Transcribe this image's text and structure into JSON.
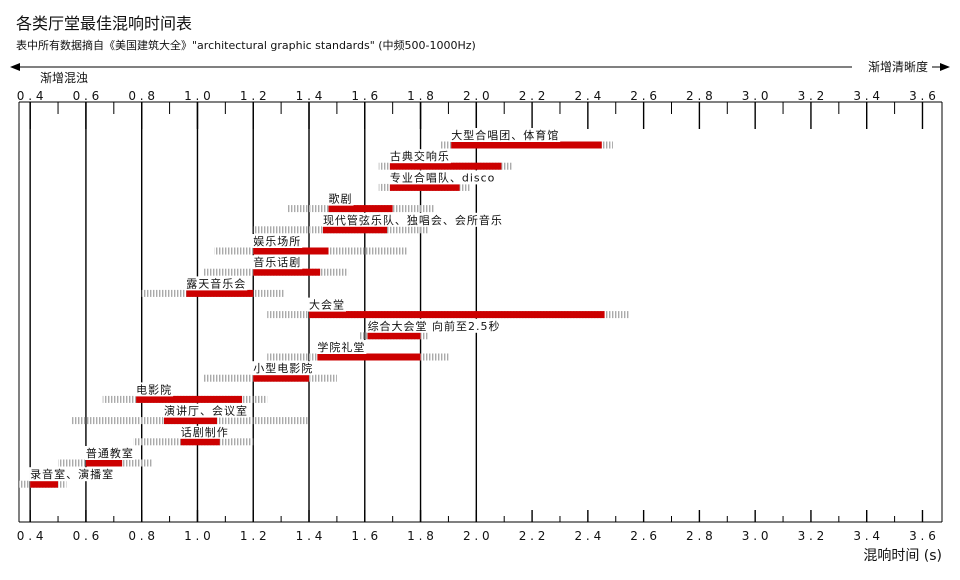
{
  "chart_data": {
    "type": "range-bar",
    "title": "各类厅堂最佳混响时间表",
    "subtitle": "表中所有数据摘自《美国建筑大全》\"architectural graphic standards\" (中频500-1000Hz)",
    "direction_left": "渐增混浊",
    "direction_right": "渐增清晰度",
    "xlabel": "混响时间 (s)",
    "xlim": [
      0.36,
      3.67
    ],
    "ticks": [
      {
        "v": 0.4,
        "label": "0.4"
      },
      {
        "v": 0.6,
        "label": "0.6"
      },
      {
        "v": 0.8,
        "label": "0.8"
      },
      {
        "v": 1.0,
        "label": "1.0"
      },
      {
        "v": 1.2,
        "label": "1.2"
      },
      {
        "v": 1.4,
        "label": "1.4"
      },
      {
        "v": 1.6,
        "label": "1.6"
      },
      {
        "v": 1.8,
        "label": "1.8"
      },
      {
        "v": 2.0,
        "label": "2.0"
      },
      {
        "v": 2.2,
        "label": "2.2"
      },
      {
        "v": 2.4,
        "label": "2.4"
      },
      {
        "v": 2.6,
        "label": "2.6"
      },
      {
        "v": 2.8,
        "label": "2.8"
      },
      {
        "v": 3.0,
        "label": "3.0"
      },
      {
        "v": 3.2,
        "label": "3.2"
      },
      {
        "v": 3.4,
        "label": "3.4"
      },
      {
        "v": 3.6,
        "label": "3.6"
      }
    ],
    "major_lines": [
      0.4,
      0.6,
      0.8,
      1.0,
      1.2,
      1.4,
      1.6,
      1.8,
      2.0,
      2.2,
      2.4,
      2.6,
      2.8,
      3.0,
      3.2,
      3.4,
      3.6
    ],
    "colors": {
      "optimal": "#cc0000",
      "tolerance": "#aaaaaa",
      "grid": "#000000"
    },
    "legend": "none",
    "rows": [
      {
        "name": "大型合唱团、体育馆",
        "tol_low": 1.87,
        "low": 1.91,
        "high": 2.45,
        "tol_high": 2.49
      },
      {
        "name": "古典交响乐",
        "tol_low": 1.65,
        "low": 1.69,
        "high": 2.09,
        "tol_high": 2.13
      },
      {
        "name": "专业合唱队、disco",
        "tol_low": 1.65,
        "low": 1.69,
        "high": 1.94,
        "tol_high": 1.98
      },
      {
        "name": "歌剧",
        "tol_low": 1.32,
        "low": 1.47,
        "high": 1.7,
        "tol_high": 1.85
      },
      {
        "name": "现代管弦乐队、独唱会、会所音乐",
        "tol_low": 1.2,
        "low": 1.45,
        "high": 1.68,
        "tol_high": 1.83
      },
      {
        "name": "娱乐场所",
        "tol_low": 1.06,
        "low": 1.2,
        "high": 1.47,
        "tol_high": 1.75
      },
      {
        "name": "音乐话剧",
        "tol_low": 1.02,
        "low": 1.2,
        "high": 1.44,
        "tol_high": 1.54
      },
      {
        "name": "露天音乐会",
        "tol_low": 0.8,
        "low": 0.96,
        "high": 1.2,
        "tol_high": 1.31
      },
      {
        "name": "大会堂",
        "tol_low": 1.25,
        "low": 1.4,
        "high": 2.46,
        "tol_high": 2.55
      },
      {
        "name": "综合大会堂 向前至2.5秒",
        "tol_low": 1.58,
        "low": 1.61,
        "high": 1.8,
        "tol_high": 1.83
      },
      {
        "name": "学院礼堂",
        "tol_low": 1.25,
        "low": 1.43,
        "high": 1.8,
        "tol_high": 1.9
      },
      {
        "name": "小型电影院",
        "tol_low": 1.02,
        "low": 1.2,
        "high": 1.4,
        "tol_high": 1.5
      },
      {
        "name": "电影院",
        "tol_low": 0.66,
        "low": 0.78,
        "high": 1.16,
        "tol_high": 1.25
      },
      {
        "name": "演讲厅、会议室",
        "tol_low": 0.55,
        "low": 0.88,
        "high": 1.07,
        "tol_high": 1.4
      },
      {
        "name": "话剧制作",
        "tol_low": 0.77,
        "low": 0.94,
        "high": 1.08,
        "tol_high": 1.2
      },
      {
        "name": "普通教室",
        "tol_low": 0.5,
        "low": 0.6,
        "high": 0.73,
        "tol_high": 0.84
      },
      {
        "name": "录音室、演播室",
        "tol_low": 0.36,
        "low": 0.4,
        "high": 0.5,
        "tol_high": 0.53
      }
    ]
  }
}
